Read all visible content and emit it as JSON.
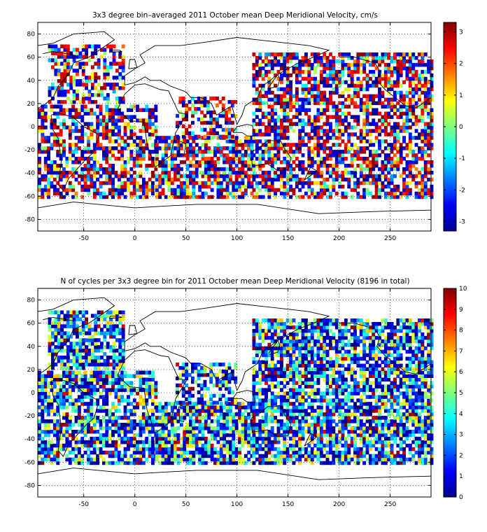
{
  "chart_data": [
    {
      "type": "heatmap",
      "title": "3x3 degree bin–averaged 2011 October mean Deep Meridional Velocity, cm/s",
      "xlim": [
        -95,
        290
      ],
      "ylim": [
        -90,
        90
      ],
      "x_ticks": [
        -50,
        0,
        50,
        100,
        150,
        200,
        250
      ],
      "y_ticks": [
        80,
        60,
        40,
        20,
        0,
        -20,
        -40,
        -60,
        -80
      ],
      "grid": true,
      "colorbar": {
        "min": -3.3,
        "max": 3.3,
        "ticks": [
          3,
          2,
          1,
          0,
          -1,
          -2,
          -3
        ],
        "colormap": "jet",
        "placement": "right"
      },
      "bin_size_deg": 3,
      "regions": [
        {
          "x": [
            -85,
            -10
          ],
          "y": [
            20,
            70
          ],
          "density": 0.55
        },
        {
          "x": [
            -95,
            20
          ],
          "y": [
            -62,
            18
          ],
          "density": 0.6
        },
        {
          "x": [
            20,
            115
          ],
          "y": [
            -62,
            -10
          ],
          "density": 0.7
        },
        {
          "x": [
            40,
            100
          ],
          "y": [
            -10,
            25
          ],
          "density": 0.45
        },
        {
          "x": [
            115,
            290
          ],
          "y": [
            -62,
            62
          ],
          "density": 0.65
        }
      ]
    },
    {
      "type": "heatmap",
      "title": "N of cycles per 3x3 degree bin for 2011 October mean Deep Meridional Velocity (8196 in total)",
      "xlim": [
        -95,
        290
      ],
      "ylim": [
        -90,
        90
      ],
      "x_ticks": [
        -50,
        0,
        50,
        100,
        150,
        200,
        250
      ],
      "y_ticks": [
        80,
        60,
        40,
        20,
        0,
        -20,
        -40,
        -60,
        -80
      ],
      "grid": true,
      "colorbar": {
        "min": 0,
        "max": 10,
        "ticks": [
          10,
          9,
          8,
          7,
          6,
          5,
          4,
          3,
          2,
          1,
          0
        ],
        "colormap": "jet",
        "placement": "right"
      },
      "bin_size_deg": 3,
      "total_cycles": 8196,
      "regions": [
        {
          "x": [
            -85,
            -10
          ],
          "y": [
            20,
            70
          ],
          "density": 0.7
        },
        {
          "x": [
            -95,
            20
          ],
          "y": [
            -62,
            18
          ],
          "density": 0.7
        },
        {
          "x": [
            20,
            115
          ],
          "y": [
            -62,
            -10
          ],
          "density": 0.8
        },
        {
          "x": [
            40,
            100
          ],
          "y": [
            -10,
            25
          ],
          "density": 0.5
        },
        {
          "x": [
            115,
            290
          ],
          "y": [
            -62,
            62
          ],
          "density": 0.75
        }
      ]
    }
  ]
}
